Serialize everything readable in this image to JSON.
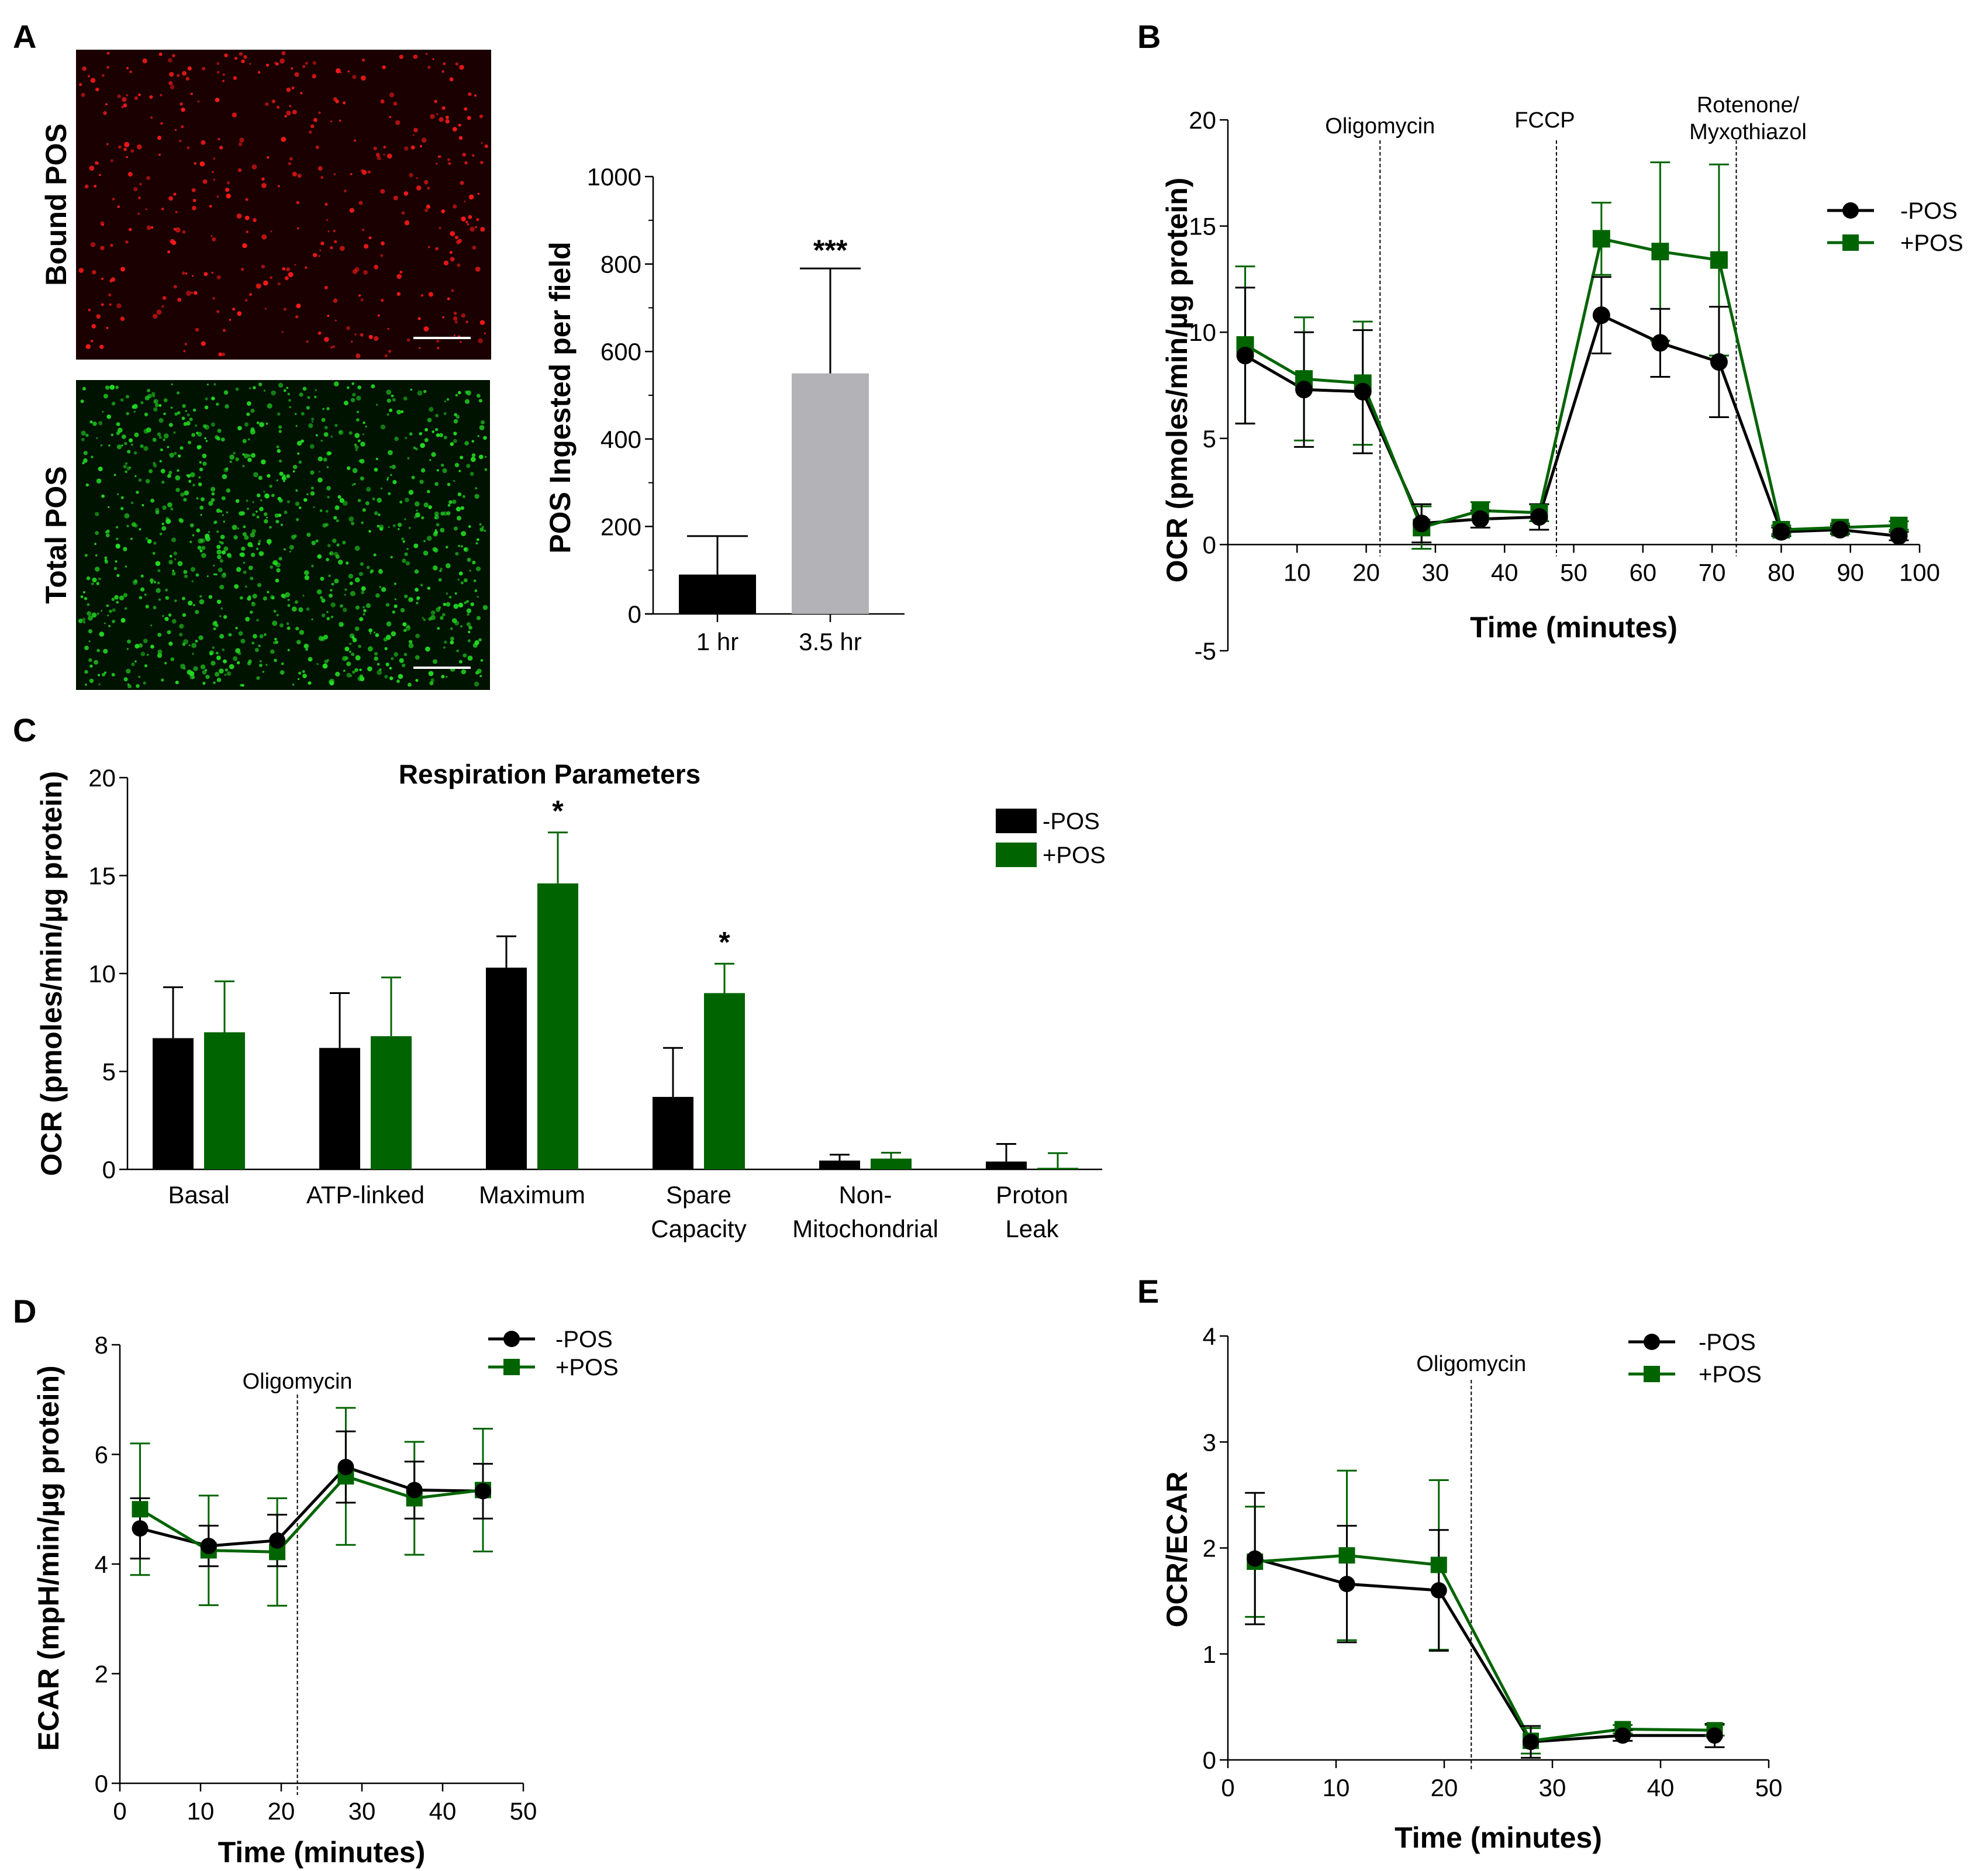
{
  "figure": {
    "panel_labels": [
      "A",
      "B",
      "C",
      "D",
      "E"
    ]
  },
  "colors": {
    "neg_pos": "#000000",
    "plus_pos": "#006400",
    "bar_gray": "#b3b3b7",
    "bound_pos_bg": "#1a0000",
    "bound_pos_dot": "#ff1a1a",
    "total_pos_bg": "#001200",
    "total_pos_dot": "#22dd22"
  },
  "micrographs": {
    "bound_label": "Bound POS",
    "total_label": "Total POS"
  },
  "chart_data": [
    {
      "id": "A",
      "type": "bar",
      "title": "",
      "xlabel": "",
      "ylabel": "POS Ingested per field",
      "categories": [
        "1 hr",
        "3.5 hr"
      ],
      "values": [
        90,
        550
      ],
      "errors": [
        88,
        240
      ],
      "bar_colors": [
        "#000000",
        "#b3b3b7"
      ],
      "significance": [
        "",
        "***"
      ],
      "ylim": [
        0,
        1000
      ],
      "yticks": [
        0,
        200,
        400,
        600,
        800,
        1000
      ],
      "ytick_labels": [
        "0",
        "200",
        "400",
        "600",
        "800",
        "1000"
      ],
      "grid": false
    },
    {
      "id": "B",
      "type": "line",
      "title": "",
      "xlabel": "Time (minutes)",
      "ylabel": "OCR (pmoles/min/µg protein)",
      "xlim": [
        0,
        100
      ],
      "ylim": [
        -5,
        20
      ],
      "xticks": [
        10,
        20,
        30,
        40,
        50,
        60,
        70,
        80,
        90,
        100
      ],
      "xtick_labels": [
        "10",
        "20",
        "30",
        "40",
        "50",
        "60",
        "70",
        "80",
        "90",
        "100"
      ],
      "yticks": [
        -5,
        0,
        5,
        10,
        15,
        20
      ],
      "ytick_labels": [
        "-5",
        "0",
        "5",
        "10",
        "15",
        "20"
      ],
      "x": [
        2.5,
        11,
        19.5,
        28,
        36.5,
        45,
        54,
        62.5,
        71,
        80,
        88.5,
        97
      ],
      "series": [
        {
          "name": "-POS",
          "marker": "circle",
          "color": "#000000",
          "values": [
            8.9,
            7.3,
            7.2,
            1.0,
            1.2,
            1.3,
            10.8,
            9.5,
            8.6,
            0.6,
            0.7,
            0.4
          ],
          "errors": [
            3.2,
            2.7,
            2.9,
            0.9,
            0.4,
            0.6,
            1.8,
            1.6,
            2.6,
            0.2,
            0.2,
            0.2
          ]
        },
        {
          "name": "+POS",
          "marker": "square",
          "color": "#006400",
          "values": [
            9.4,
            7.8,
            7.6,
            0.8,
            1.6,
            1.5,
            14.4,
            13.8,
            13.4,
            0.7,
            0.8,
            0.9
          ],
          "errors": [
            3.7,
            2.9,
            2.9,
            1.0,
            0.4,
            0.4,
            1.7,
            4.2,
            4.5,
            0.2,
            0.2,
            0.2
          ]
        }
      ],
      "annotations": [
        {
          "label": "Oligomycin",
          "x": 22
        },
        {
          "label": "FCCP",
          "x": 47.5
        },
        {
          "label": "Rotenone/ Myxothiazol",
          "x": 73.5
        }
      ],
      "legend": "top-right",
      "grid": false
    },
    {
      "id": "C",
      "type": "bar",
      "title": "Respiration Parameters",
      "xlabel": "",
      "ylabel": "OCR (pmoles/min/µg protein)",
      "categories": [
        "Basal",
        "ATP-linked",
        "Maximum",
        "Spare Capacity",
        "Non-Mitochondrial",
        "Proton Leak"
      ],
      "category_lines": [
        [
          "Basal"
        ],
        [
          "ATP-linked"
        ],
        [
          "Maximum"
        ],
        [
          "Spare",
          "Capacity"
        ],
        [
          "Non-",
          "Mitochondrial"
        ],
        [
          "Proton",
          "Leak"
        ]
      ],
      "series": [
        {
          "name": "-POS",
          "color": "#000000",
          "values": [
            6.7,
            6.2,
            10.3,
            3.7,
            0.45,
            0.4
          ],
          "errors": [
            2.6,
            2.8,
            1.6,
            2.5,
            0.3,
            0.9
          ],
          "significance": [
            "",
            "",
            "",
            "",
            "",
            ""
          ]
        },
        {
          "name": "+POS",
          "color": "#006400",
          "values": [
            7.0,
            6.8,
            14.6,
            9.0,
            0.55,
            0.08
          ],
          "errors": [
            2.6,
            3.0,
            2.6,
            1.5,
            0.3,
            0.75
          ],
          "significance": [
            "",
            "",
            "*",
            "*",
            "",
            ""
          ]
        }
      ],
      "ylim": [
        0,
        20
      ],
      "yticks": [
        0,
        5,
        10,
        15,
        20
      ],
      "ytick_labels": [
        "0",
        "5",
        "10",
        "15",
        "20"
      ],
      "legend": "top-right",
      "grid": false
    },
    {
      "id": "D",
      "type": "line",
      "title": "",
      "xlabel": "Time (minutes)",
      "ylabel": "ECAR (mpH/min/µg protein)",
      "xlim": [
        0,
        50
      ],
      "ylim": [
        0,
        8
      ],
      "xticks": [
        0,
        10,
        20,
        30,
        40,
        50
      ],
      "xtick_labels": [
        "0",
        "10",
        "20",
        "30",
        "40",
        "50"
      ],
      "yticks": [
        0,
        2,
        4,
        6,
        8
      ],
      "ytick_labels": [
        "0",
        "2",
        "4",
        "6",
        "8"
      ],
      "x": [
        2.5,
        11,
        19.5,
        28,
        36.5,
        45
      ],
      "series": [
        {
          "name": "-POS",
          "marker": "circle",
          "color": "#000000",
          "values": [
            4.65,
            4.33,
            4.43,
            5.77,
            5.35,
            5.33
          ],
          "errors": [
            0.55,
            0.37,
            0.47,
            0.65,
            0.52,
            0.5
          ]
        },
        {
          "name": "+POS",
          "marker": "square",
          "color": "#006400",
          "values": [
            5.0,
            4.25,
            4.22,
            5.6,
            5.2,
            5.35
          ],
          "errors": [
            1.2,
            1.0,
            0.98,
            1.25,
            1.03,
            1.12
          ]
        }
      ],
      "annotations": [
        {
          "label": "Oligomycin",
          "x": 22
        }
      ],
      "legend": "top-right",
      "grid": false
    },
    {
      "id": "E",
      "type": "line",
      "title": "",
      "xlabel": "Time (minutes)",
      "ylabel": "OCR/ECAR",
      "xlim": [
        0,
        50
      ],
      "ylim": [
        0,
        4
      ],
      "xticks": [
        0,
        10,
        20,
        30,
        40,
        50
      ],
      "xtick_labels": [
        "0",
        "10",
        "20",
        "30",
        "40",
        "50"
      ],
      "yticks": [
        0,
        1,
        2,
        3,
        4
      ],
      "ytick_labels": [
        "0",
        "1",
        "2",
        "3",
        "4"
      ],
      "x": [
        2.5,
        11,
        19.5,
        28,
        36.5,
        45
      ],
      "series": [
        {
          "name": "-POS",
          "marker": "circle",
          "color": "#000000",
          "values": [
            1.9,
            1.66,
            1.6,
            0.17,
            0.23,
            0.23
          ],
          "errors": [
            0.62,
            0.55,
            0.57,
            0.15,
            0.05,
            0.11
          ]
        },
        {
          "name": "+POS",
          "marker": "square",
          "color": "#006400",
          "values": [
            1.87,
            1.93,
            1.84,
            0.18,
            0.29,
            0.28
          ],
          "errors": [
            0.52,
            0.8,
            0.8,
            0.12,
            0.04,
            0.05
          ]
        }
      ],
      "annotations": [
        {
          "label": "Oligomycin",
          "x": 22.5
        }
      ],
      "legend": "top-right",
      "grid": false
    }
  ]
}
